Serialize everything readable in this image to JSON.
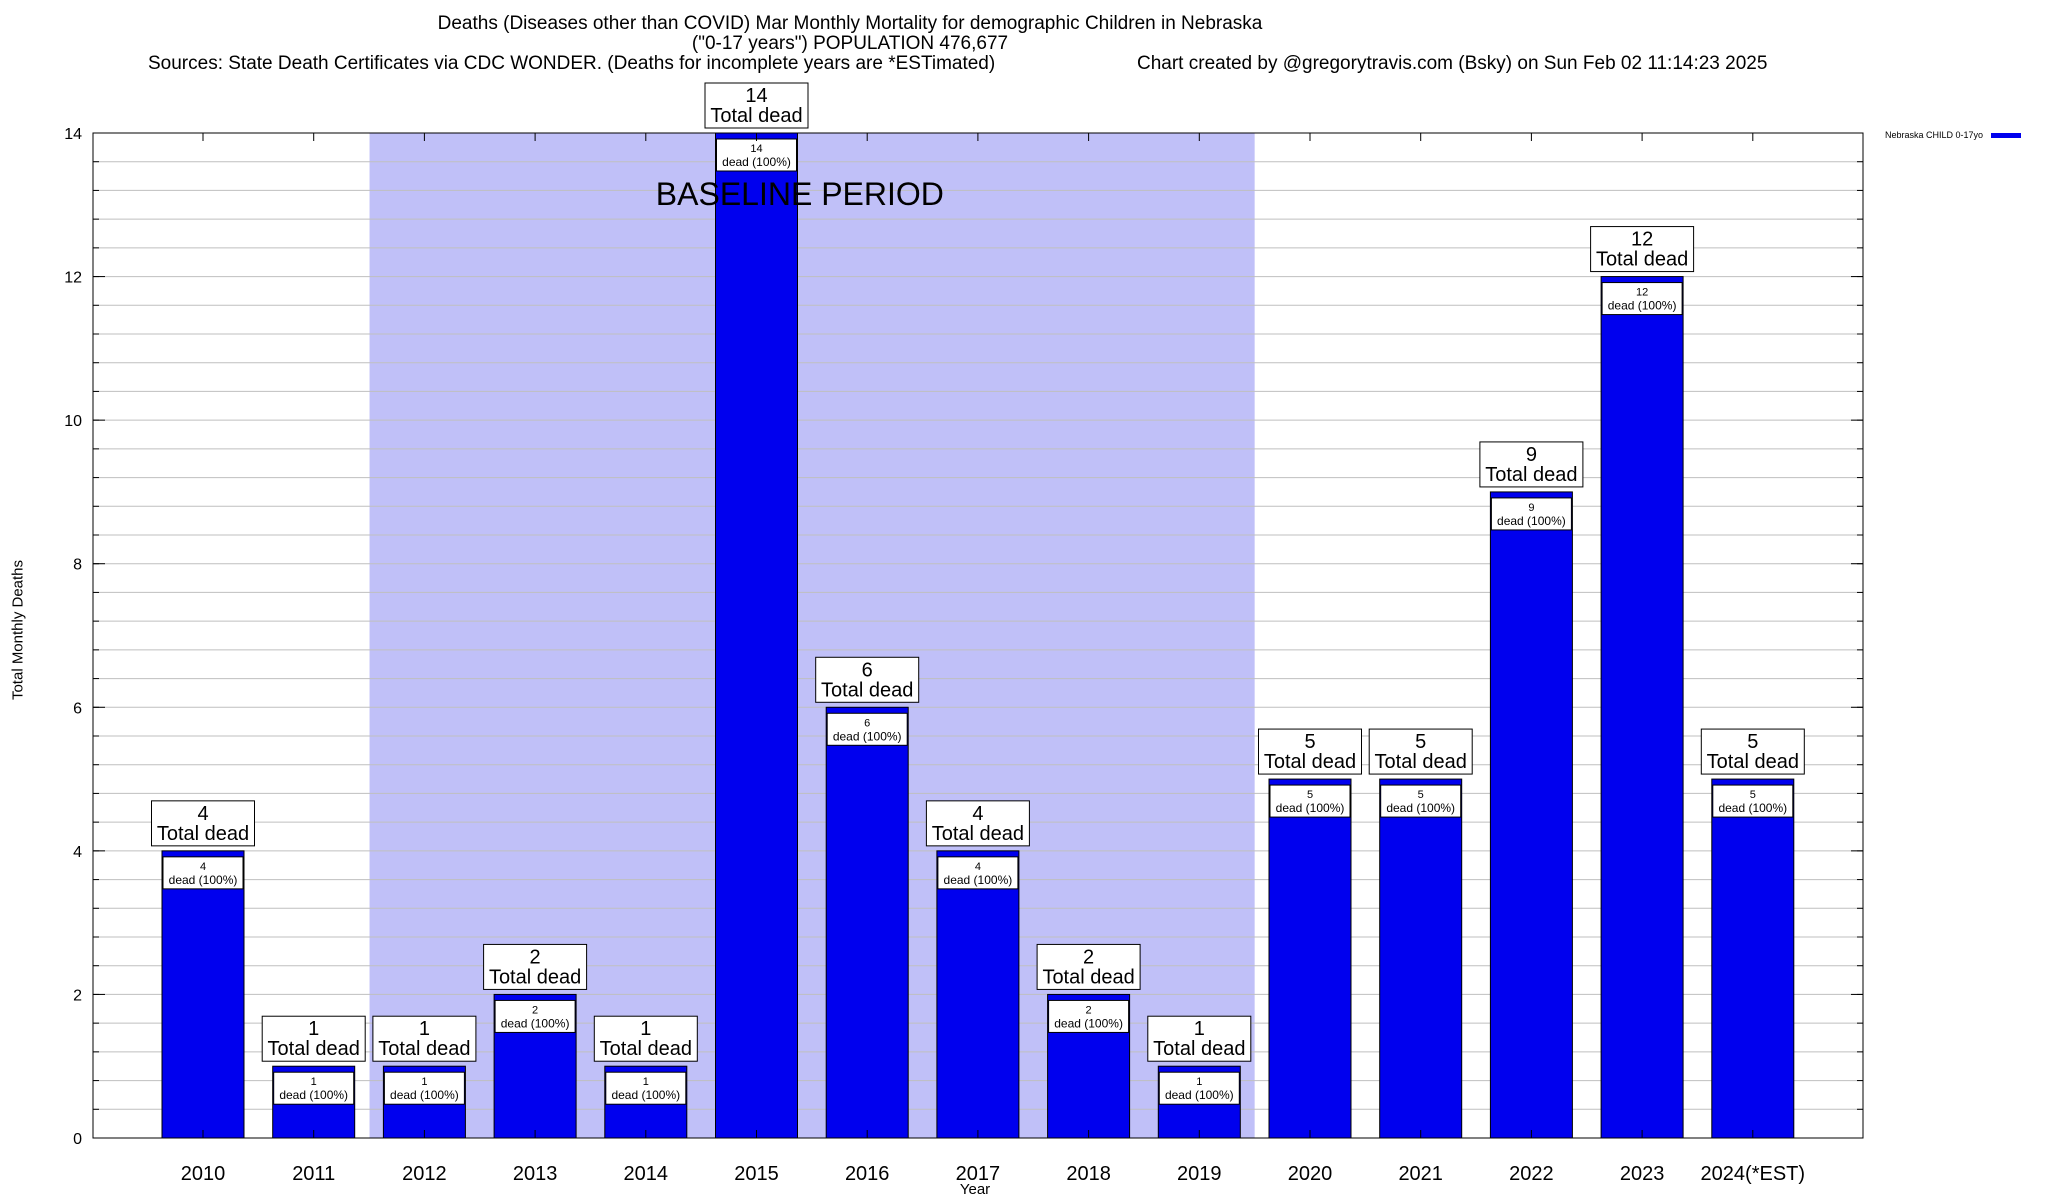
{
  "title_line1": "Deaths (Diseases other than COVID) Mar Monthly Mortality for demographic Children in Nebraska",
  "title_line2": "(\"0-17 years\") POPULATION 476,677",
  "sources": "Sources: State Death Certificates via CDC WONDER. (Deaths for incomplete years are *ESTimated)",
  "credit": "Chart created by @gregorytravis.com (Bsky) on Sun Feb 02 11:14:23 2025",
  "legend_label": "Nebraska CHILD 0-17yo",
  "colors": {
    "bar": "#0000ee",
    "baseline_shade": "#c0c0f8",
    "grid": "#bfbfbf"
  },
  "chart_data": {
    "type": "bar",
    "title": "Deaths (Diseases other than COVID) Mar Monthly Mortality for demographic Children in Nebraska",
    "xlabel": "Year",
    "ylabel": "Total Monthly Deaths",
    "ylim": [
      0,
      14
    ],
    "y_ticks": [
      0,
      2,
      4,
      6,
      8,
      10,
      12,
      14
    ],
    "grid": true,
    "legend_position": "top-right",
    "categories": [
      "2010",
      "2011",
      "2012",
      "2013",
      "2014",
      "2015",
      "2016",
      "2017",
      "2018",
      "2019",
      "2020",
      "2021",
      "2022",
      "2023",
      "2024(*EST)"
    ],
    "series": [
      {
        "name": "Nebraska CHILD 0-17yo",
        "values": [
          4,
          1,
          1,
          2,
          1,
          14,
          6,
          4,
          2,
          1,
          5,
          5,
          9,
          12,
          5
        ]
      }
    ],
    "total_label": "Total dead",
    "inner_label_suffix": "dead (100%)",
    "shaded_region": {
      "label": "BASELINE PERIOD",
      "from_category": "2012",
      "to_category": "2019"
    }
  }
}
